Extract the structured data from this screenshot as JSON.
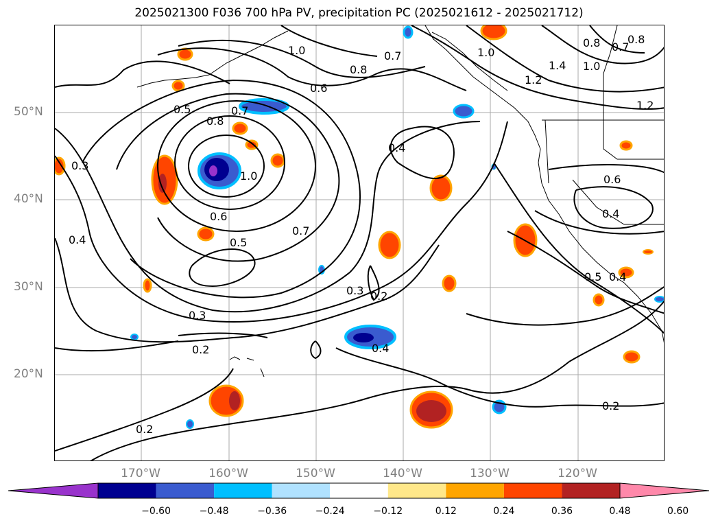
{
  "title": "2025021300 F036 700 hPa PV, precipitation PC (2025021612 - 2025021712)",
  "lat_labels": [
    "50°N",
    "40°N",
    "30°N",
    "20°N"
  ],
  "lon_labels": [
    "170°W",
    "160°W",
    "150°W",
    "140°W",
    "130°W",
    "120°W"
  ],
  "colorbar": {
    "ticks": [
      "−0.60",
      "−0.48",
      "−0.36",
      "−0.24",
      "−0.12",
      "0.12",
      "0.24",
      "0.36",
      "0.48",
      "0.60"
    ],
    "colors": [
      "#9933cc",
      "#000090",
      "#3a5bcf",
      "#00bfff",
      "#b0e2ff",
      "#ffffff",
      "#ffe88a",
      "#ffa500",
      "#ff4500",
      "#b22222",
      "#ff88aa"
    ]
  },
  "contour_labels": [
    "1.0",
    "0.8",
    "0.7",
    "0.6",
    "0.5",
    "0.8",
    "0.7",
    "0.4",
    "1.0",
    "1.2",
    "1.4",
    "0.8",
    "0.7",
    "0.8",
    "1.0",
    "1.2",
    "0.3",
    "0.4",
    "1.0",
    "0.6",
    "0.5",
    "0.7",
    "0.6",
    "0.4",
    "0.3",
    "0.2",
    "0.3",
    "0.2",
    "0.4",
    "0.5",
    "0.4",
    "0.2",
    "0.2"
  ]
}
